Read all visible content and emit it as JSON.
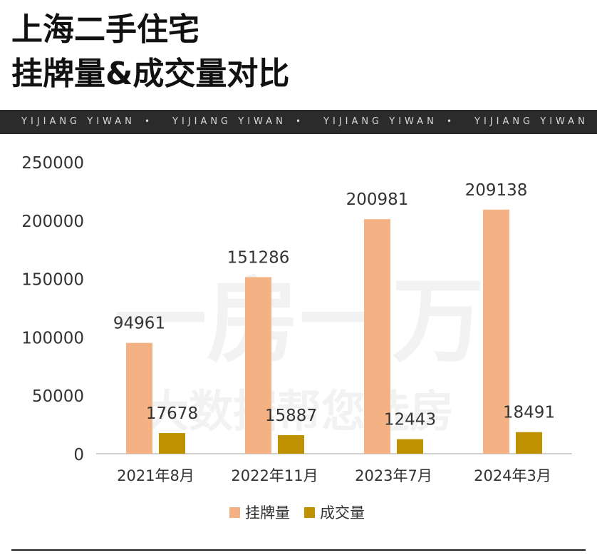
{
  "header": {
    "title_line1": "上海二手住宅",
    "title_line2": "挂牌量&成交量对比"
  },
  "band": {
    "items": [
      "YIJIANG YIWAN",
      "•",
      "YIJIANG YIWAN",
      "•",
      "YIJIANG YIWAN",
      "•",
      "YIJIANG YIWAN"
    ]
  },
  "watermark": {
    "line1": "一房一万",
    "line2": "大数据帮您选房"
  },
  "colors": {
    "listing": "#F4B183",
    "deals": "#BF9000",
    "axis_text": "#333333"
  },
  "chart_data": {
    "type": "bar",
    "categories": [
      "2021年8月",
      "2022年11月",
      "2023年7月",
      "2024年3月"
    ],
    "series": [
      {
        "name": "挂牌量",
        "values": [
          94961,
          151286,
          200981,
          209138
        ]
      },
      {
        "name": "成交量",
        "values": [
          17678,
          15887,
          12443,
          18491
        ]
      }
    ],
    "title": "上海二手住宅 挂牌量&成交量对比",
    "xlabel": "",
    "ylabel": "",
    "ylim": [
      0,
      250000
    ],
    "yticks": [
      0,
      50000,
      100000,
      150000,
      200000,
      250000
    ],
    "grid": false,
    "legend_position": "bottom"
  }
}
